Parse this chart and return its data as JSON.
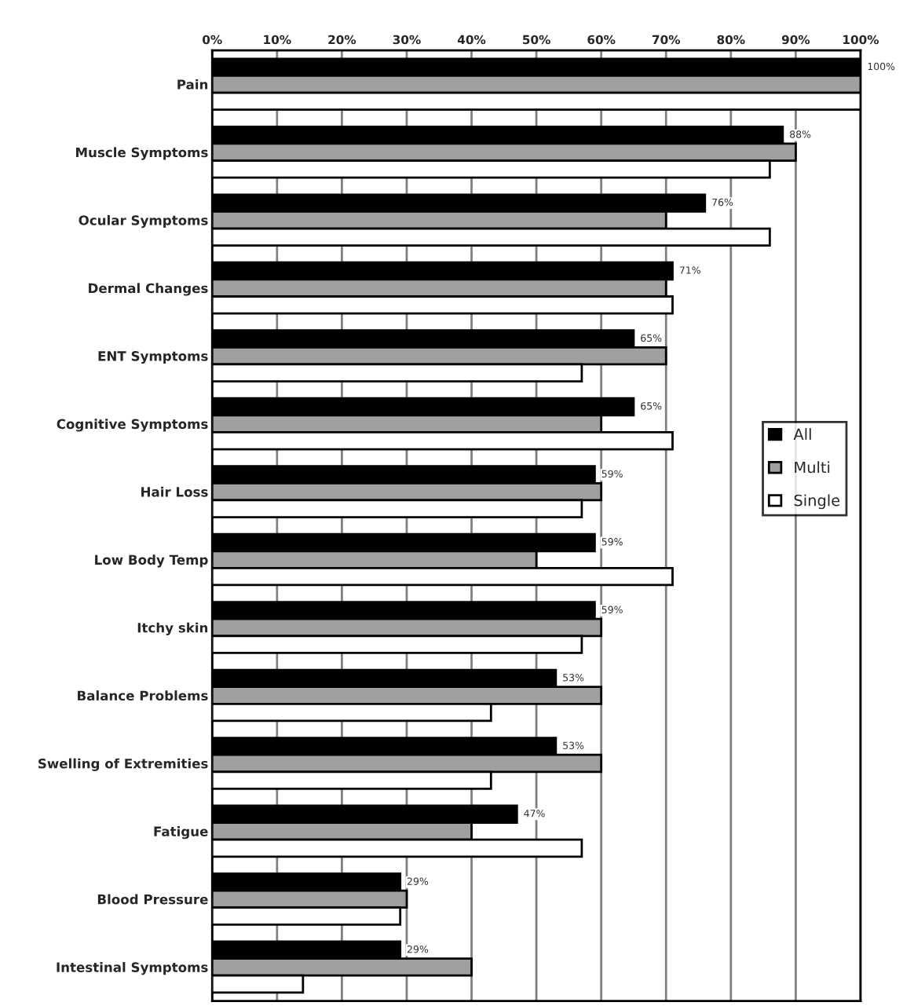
{
  "chart_data": {
    "type": "bar",
    "orientation": "horizontal",
    "categories": [
      "Pain",
      "Muscle Symptoms",
      "Ocular Symptoms",
      "Dermal Changes",
      "ENT Symptoms",
      "Cognitive Symptoms",
      "Hair Loss",
      "Low Body Temp",
      "Itchy skin",
      "Balance Problems",
      "Swelling of Extremities",
      "Fatigue",
      "Blood Pressure",
      "Intestinal Symptoms"
    ],
    "series": [
      {
        "name": "All",
        "color": "#000000",
        "values": [
          100,
          88,
          76,
          71,
          65,
          65,
          59,
          59,
          59,
          53,
          53,
          47,
          29,
          29
        ],
        "value_labels": [
          "100%",
          "88%",
          "76%",
          "71%",
          "65%",
          "65%",
          "59%",
          "59%",
          "59%",
          "53%",
          "53%",
          "47%",
          "29%",
          "29%"
        ]
      },
      {
        "name": "Multi",
        "color": "#a0a0a0",
        "values": [
          100,
          90,
          70,
          70,
          70,
          60,
          60,
          50,
          60,
          60,
          60,
          40,
          30,
          40
        ]
      },
      {
        "name": "Single",
        "color": "#ffffff",
        "values": [
          100,
          86,
          86,
          71,
          57,
          71,
          57,
          71,
          57,
          43,
          43,
          57,
          29,
          14
        ]
      }
    ],
    "xlim": [
      0,
      100
    ],
    "xticks": [
      {
        "value": 0,
        "label": "0%"
      },
      {
        "value": 10,
        "label": "10%"
      },
      {
        "value": 20,
        "label": "20%"
      },
      {
        "value": 30,
        "label": "30%"
      },
      {
        "value": 40,
        "label": "40%"
      },
      {
        "value": 50,
        "label": "50%"
      },
      {
        "value": 60,
        "label": "60%"
      },
      {
        "value": 70,
        "label": "70%"
      },
      {
        "value": 80,
        "label": "80%"
      },
      {
        "value": 90,
        "label": "90%"
      },
      {
        "value": 100,
        "label": "100%"
      }
    ],
    "grid": "x",
    "legend": "right"
  }
}
